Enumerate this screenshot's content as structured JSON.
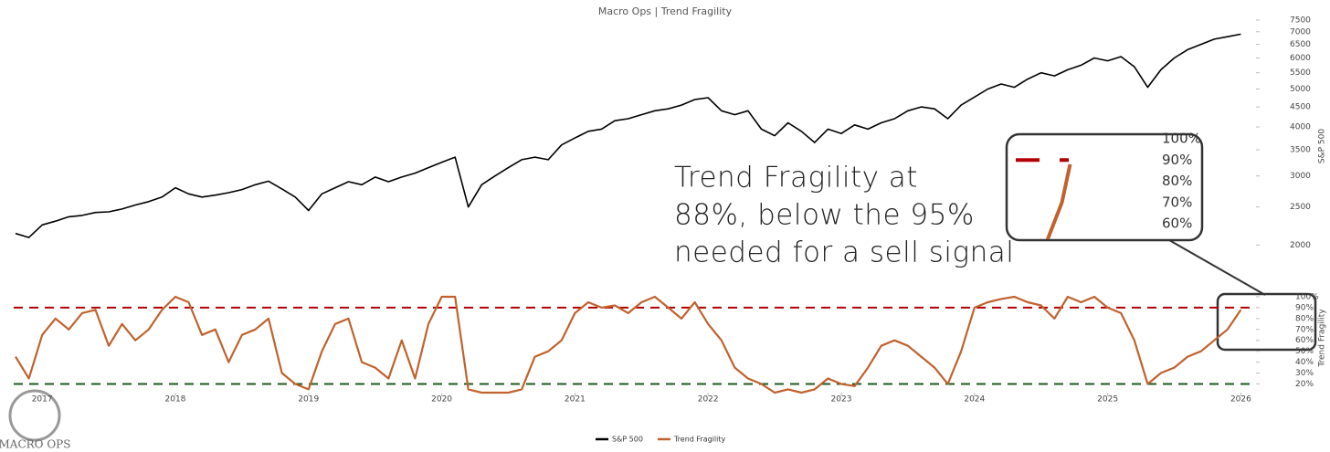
{
  "logo": "MACRO OPS",
  "chart_data": [
    {
      "type": "line",
      "title": "Macro Ops | Trend Fragility",
      "ylabel": "S&P 500",
      "log": true,
      "xlim": [
        2016.8,
        2026.1
      ],
      "x": [
        2016.8,
        2016.9,
        2017.0,
        2017.1,
        2017.2,
        2017.3,
        2017.4,
        2017.5,
        2017.6,
        2017.7,
        2017.8,
        2017.9,
        2018.0,
        2018.1,
        2018.2,
        2018.3,
        2018.4,
        2018.5,
        2018.6,
        2018.7,
        2018.8,
        2018.9,
        2019.0,
        2019.1,
        2019.2,
        2019.3,
        2019.4,
        2019.5,
        2019.6,
        2019.7,
        2019.8,
        2019.9,
        2020.0,
        2020.1,
        2020.2,
        2020.3,
        2020.4,
        2020.5,
        2020.6,
        2020.7,
        2020.8,
        2020.9,
        2021.0,
        2021.1,
        2021.2,
        2021.3,
        2021.4,
        2021.5,
        2021.6,
        2021.7,
        2021.8,
        2021.9,
        2022.0,
        2022.1,
        2022.2,
        2022.3,
        2022.4,
        2022.5,
        2022.6,
        2022.7,
        2022.8,
        2022.9,
        2023.0,
        2023.1,
        2023.2,
        2023.3,
        2023.4,
        2023.5,
        2023.6,
        2023.7,
        2023.8,
        2023.9,
        2024.0,
        2024.1,
        2024.2,
        2024.3,
        2024.4,
        2024.5,
        2024.6,
        2024.7,
        2024.8,
        2024.9,
        2025.0,
        2025.1,
        2025.2,
        2025.3,
        2025.4,
        2025.5,
        2025.6,
        2025.7,
        2025.8,
        2025.9,
        2026.0
      ],
      "series": [
        {
          "name": "S&P 500",
          "color": "#000000",
          "values": [
            2140,
            2090,
            2250,
            2300,
            2360,
            2380,
            2420,
            2430,
            2470,
            2530,
            2580,
            2650,
            2800,
            2700,
            2650,
            2680,
            2720,
            2770,
            2850,
            2910,
            2780,
            2650,
            2450,
            2700,
            2800,
            2900,
            2850,
            2980,
            2900,
            2980,
            3050,
            3150,
            3250,
            3350,
            2500,
            2850,
            3000,
            3150,
            3300,
            3350,
            3300,
            3600,
            3750,
            3900,
            3950,
            4150,
            4200,
            4300,
            4400,
            4450,
            4550,
            4700,
            4750,
            4400,
            4300,
            4400,
            3950,
            3800,
            4100,
            3900,
            3650,
            3950,
            3850,
            4050,
            3950,
            4100,
            4200,
            4400,
            4500,
            4450,
            4200,
            4550,
            4770,
            5000,
            5150,
            5050,
            5300,
            5500,
            5400,
            5600,
            5750,
            6000,
            5900,
            6050,
            5700,
            5050,
            5600,
            6000,
            6300,
            6500,
            6700,
            6800,
            6900
          ]
        }
      ],
      "ylim": [
        1950,
        7700
      ],
      "yticks": [
        2000,
        2500,
        3000,
        3500,
        4000,
        4500,
        5000,
        5500,
        6000,
        6500,
        7000,
        7500
      ],
      "annotation": [
        "Trend Fragility at",
        "88%, below the 95%",
        "needed for a sell signal"
      ]
    },
    {
      "type": "line",
      "ylabel": "Trend Fragility",
      "xticks": [
        2017,
        2018,
        2019,
        2020,
        2021,
        2022,
        2023,
        2024,
        2025,
        2026
      ],
      "series": [
        {
          "name": "Trend Fragility",
          "color": "#c0622d",
          "values": [
            45,
            25,
            65,
            80,
            70,
            85,
            88,
            55,
            75,
            60,
            70,
            88,
            100,
            95,
            65,
            70,
            40,
            65,
            70,
            80,
            30,
            20,
            15,
            50,
            75,
            80,
            40,
            35,
            25,
            60,
            25,
            75,
            100,
            100,
            15,
            12,
            12,
            12,
            15,
            45,
            50,
            60,
            85,
            95,
            90,
            92,
            85,
            95,
            100,
            90,
            80,
            95,
            75,
            60,
            35,
            25,
            20,
            12,
            15,
            12,
            15,
            25,
            20,
            18,
            35,
            55,
            60,
            55,
            45,
            35,
            20,
            50,
            90,
            95,
            98,
            100,
            95,
            92,
            80,
            100,
            95,
            100,
            90,
            85,
            60,
            20,
            30,
            35,
            45,
            50,
            60,
            70,
            88
          ]
        }
      ],
      "ylim": [
        12,
        100
      ],
      "yticks": [
        {
          "value": 20,
          "label": "20%"
        },
        {
          "value": 30,
          "label": "30%"
        },
        {
          "value": 40,
          "label": "40%"
        },
        {
          "value": 50,
          "label": "50%"
        },
        {
          "value": 60,
          "label": "60%"
        },
        {
          "value": 70,
          "label": "70%"
        },
        {
          "value": 80,
          "label": "80%"
        },
        {
          "value": 90,
          "label": "90%"
        },
        {
          "value": 100,
          "label": "100%"
        }
      ],
      "reference_lines": [
        {
          "value": 90,
          "color": "#b30000"
        },
        {
          "value": 20,
          "color": "#1e5a1e"
        }
      ]
    },
    {
      "type": "inset",
      "xlim": [
        2025.25,
        2026.05
      ],
      "ylim": [
        55,
        102
      ],
      "yticks": [
        {
          "value": 60,
          "label": "60%"
        },
        {
          "value": 70,
          "label": "70%"
        },
        {
          "value": 80,
          "label": "80%"
        },
        {
          "value": 90,
          "label": "90%"
        },
        {
          "value": 100,
          "label": "100%"
        }
      ]
    }
  ]
}
